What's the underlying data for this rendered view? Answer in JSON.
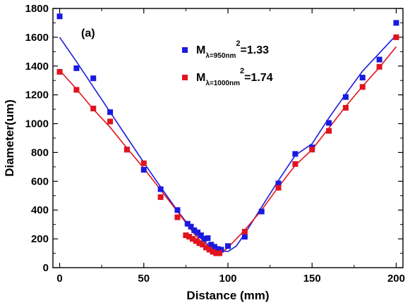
{
  "chart_data": {
    "type": "scatter",
    "panel_label": "(a)",
    "xlabel": "Distance (mm)",
    "ylabel": "Diameter(um)",
    "xlim": [
      -4,
      204
    ],
    "ylim": [
      0,
      1800
    ],
    "xticks": [
      0,
      50,
      100,
      150,
      200
    ],
    "yticks": [
      0,
      200,
      400,
      600,
      800,
      1000,
      1200,
      1400,
      1600,
      1800
    ],
    "x_minor_step": 25,
    "y_minor_step": 100,
    "grid": false,
    "legend_position": "top-center",
    "series": [
      {
        "legend": {
          "main": "M",
          "sub": "λ=950nm",
          "sup": "2",
          "value": "=1.33"
        },
        "color": "#1a1adf",
        "marker": "square",
        "points": [
          [
            0,
            1745
          ],
          [
            10,
            1385
          ],
          [
            20,
            1315
          ],
          [
            30,
            1080
          ],
          [
            40,
            820
          ],
          [
            50,
            680
          ],
          [
            60,
            545
          ],
          [
            70,
            400
          ],
          [
            76,
            305
          ],
          [
            78,
            285
          ],
          [
            80,
            260
          ],
          [
            82,
            245
          ],
          [
            84,
            225
          ],
          [
            86,
            200
          ],
          [
            88,
            205
          ],
          [
            90,
            160
          ],
          [
            92,
            145
          ],
          [
            94,
            130
          ],
          [
            96,
            125
          ],
          [
            100,
            150
          ],
          [
            110,
            215
          ],
          [
            120,
            390
          ],
          [
            130,
            585
          ],
          [
            140,
            790
          ],
          [
            150,
            835
          ],
          [
            160,
            1005
          ],
          [
            170,
            1185
          ],
          [
            180,
            1320
          ],
          [
            190,
            1445
          ],
          [
            200,
            1700
          ]
        ],
        "fit": [
          [
            0,
            1600
          ],
          [
            10,
            1430
          ],
          [
            20,
            1255
          ],
          [
            30,
            1080
          ],
          [
            40,
            905
          ],
          [
            50,
            730
          ],
          [
            60,
            560
          ],
          [
            70,
            395
          ],
          [
            80,
            245
          ],
          [
            90,
            140
          ],
          [
            95,
            118
          ],
          [
            100,
            112
          ],
          [
            105,
            150
          ],
          [
            110,
            235
          ],
          [
            120,
            420
          ],
          [
            130,
            605
          ],
          [
            140,
            780
          ],
          [
            150,
            860
          ],
          [
            160,
            1040
          ],
          [
            170,
            1205
          ],
          [
            180,
            1365
          ],
          [
            190,
            1490
          ],
          [
            200,
            1615
          ]
        ]
      },
      {
        "legend": {
          "main": "M",
          "sub": "λ=1000nm",
          "sup": "2",
          "value": "=1.74"
        },
        "color": "#e0141e",
        "marker": "square",
        "points": [
          [
            0,
            1360
          ],
          [
            10,
            1235
          ],
          [
            20,
            1105
          ],
          [
            30,
            1015
          ],
          [
            40,
            820
          ],
          [
            50,
            725
          ],
          [
            60,
            490
          ],
          [
            70,
            350
          ],
          [
            75,
            225
          ],
          [
            77,
            215
          ],
          [
            79,
            200
          ],
          [
            81,
            185
          ],
          [
            83,
            170
          ],
          [
            85,
            160
          ],
          [
            87,
            140
          ],
          [
            89,
            125
          ],
          [
            91,
            110
          ],
          [
            93,
            100
          ],
          [
            95,
            100
          ],
          [
            110,
            250
          ],
          [
            130,
            555
          ],
          [
            140,
            720
          ],
          [
            150,
            820
          ],
          [
            160,
            950
          ],
          [
            170,
            1110
          ],
          [
            180,
            1255
          ],
          [
            190,
            1395
          ],
          [
            200,
            1600
          ]
        ],
        "fit": [
          [
            0,
            1370
          ],
          [
            10,
            1240
          ],
          [
            20,
            1100
          ],
          [
            30,
            975
          ],
          [
            40,
            830
          ],
          [
            50,
            690
          ],
          [
            60,
            540
          ],
          [
            70,
            390
          ],
          [
            80,
            235
          ],
          [
            88,
            130
          ],
          [
            92,
            100
          ],
          [
            96,
            100
          ],
          [
            100,
            140
          ],
          [
            110,
            260
          ],
          [
            120,
            400
          ],
          [
            130,
            560
          ],
          [
            140,
            710
          ],
          [
            150,
            820
          ],
          [
            160,
            970
          ],
          [
            170,
            1120
          ],
          [
            180,
            1260
          ],
          [
            190,
            1390
          ],
          [
            200,
            1535
          ]
        ]
      }
    ]
  }
}
